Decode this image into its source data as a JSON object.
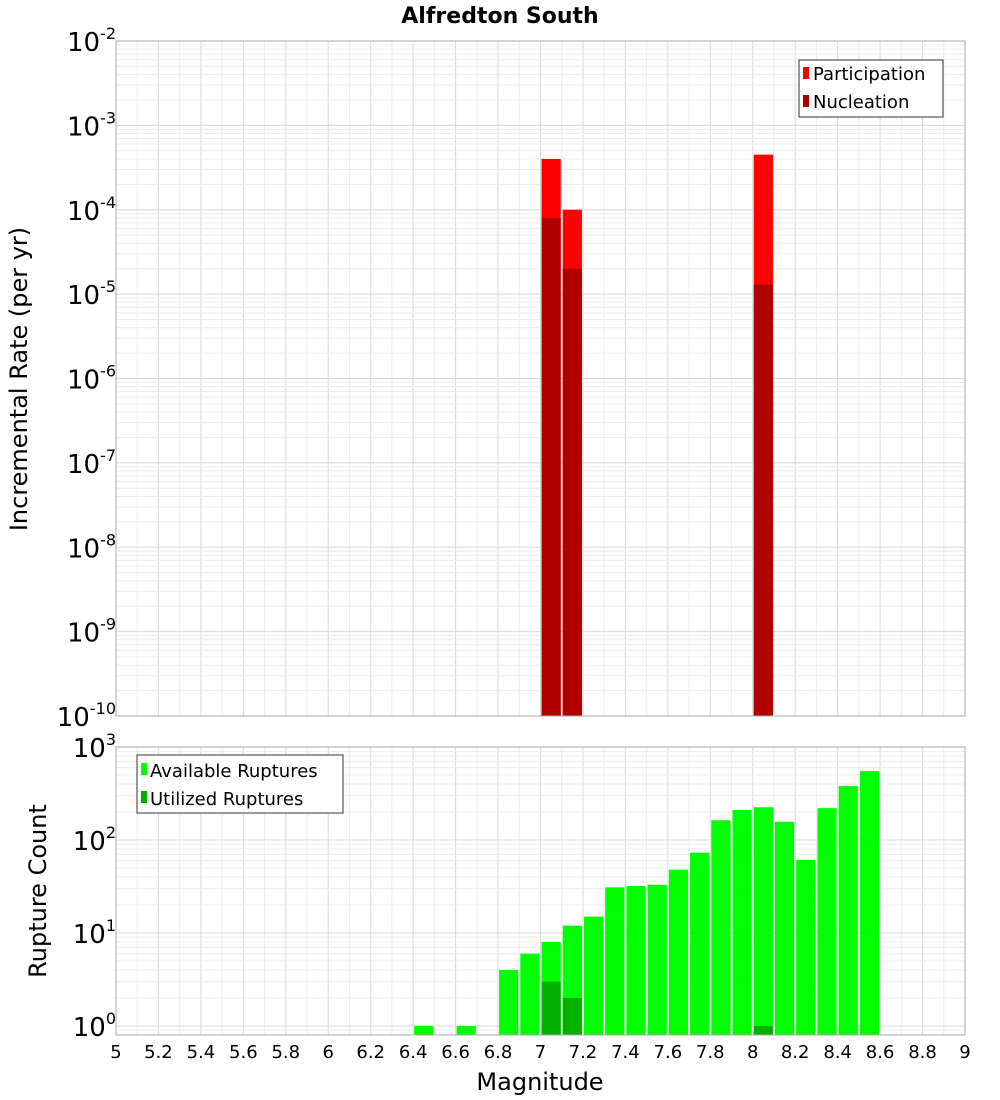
{
  "chart_data": [
    {
      "type": "bar",
      "title": "Alfredton South",
      "xlabel": "",
      "ylabel": "Incremental Rate (per yr)",
      "yscale": "log",
      "ylim": [
        1e-10,
        0.01
      ],
      "xlim": [
        5,
        9
      ],
      "bar_width": 0.1,
      "grid": true,
      "legend_position": "top-right",
      "yticks": [
        {
          "base": "10",
          "exp": "-10"
        },
        {
          "base": "10",
          "exp": "-9"
        },
        {
          "base": "10",
          "exp": "-8"
        },
        {
          "base": "10",
          "exp": "-7"
        },
        {
          "base": "10",
          "exp": "-6"
        },
        {
          "base": "10",
          "exp": "-5"
        },
        {
          "base": "10",
          "exp": "-4"
        },
        {
          "base": "10",
          "exp": "-3"
        },
        {
          "base": "10",
          "exp": "-2"
        }
      ],
      "series": [
        {
          "name": "Participation",
          "color": "#ff0000",
          "x": [
            7.05,
            7.15,
            8.05
          ],
          "values": [
            0.0004,
            0.0001,
            0.00045
          ]
        },
        {
          "name": "Nucleation",
          "color": "#b00000",
          "x": [
            7.05,
            7.15,
            8.05
          ],
          "values": [
            8e-05,
            2e-05,
            1.3e-05
          ]
        }
      ]
    },
    {
      "type": "bar",
      "title": "",
      "xlabel": "Magnitude",
      "ylabel": "Rupture Count",
      "yscale": "log",
      "ylim": [
        0.8,
        1000
      ],
      "xlim": [
        5,
        9
      ],
      "bar_width": 0.1,
      "grid": true,
      "legend_position": "top-left",
      "yticks": [
        {
          "base": "10",
          "exp": "0"
        },
        {
          "base": "10",
          "exp": "1"
        },
        {
          "base": "10",
          "exp": "2"
        },
        {
          "base": "10",
          "exp": "3"
        }
      ],
      "xticks": [
        "5",
        "5.2",
        "5.4",
        "5.6",
        "5.8",
        "6",
        "6.2",
        "6.4",
        "6.6",
        "6.8",
        "7",
        "7.2",
        "7.4",
        "7.6",
        "7.8",
        "8",
        "8.2",
        "8.4",
        "8.6",
        "8.8",
        "9"
      ],
      "series": [
        {
          "name": "Available Ruptures",
          "color": "#00ff00",
          "x": [
            6.45,
            6.65,
            6.85,
            6.95,
            7.05,
            7.15,
            7.25,
            7.35,
            7.45,
            7.55,
            7.65,
            7.75,
            7.85,
            7.95,
            8.05,
            8.15,
            8.25,
            8.35,
            8.45,
            8.55
          ],
          "values": [
            1,
            1,
            4,
            6,
            8,
            12,
            15,
            31,
            32,
            33,
            48,
            73,
            163,
            210,
            225,
            157,
            61,
            220,
            380,
            550
          ]
        },
        {
          "name": "Utilized Ruptures",
          "color": "#00b000",
          "x": [
            7.05,
            7.15,
            8.05
          ],
          "values": [
            3,
            2,
            1
          ]
        }
      ]
    }
  ]
}
